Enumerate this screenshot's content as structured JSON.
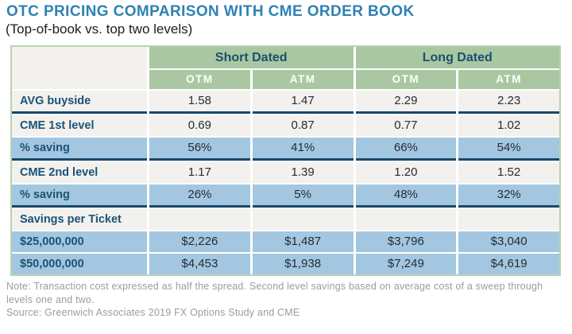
{
  "title": "OTC PRICING COMPARISON WITH CME ORDER BOOK",
  "subtitle": "(Top-of-book vs. top two levels)",
  "chart_data": {
    "type": "table",
    "group_headers": [
      "Short Dated",
      "Long Dated"
    ],
    "columns": [
      "OTM",
      "ATM",
      "OTM",
      "ATM"
    ],
    "rows": [
      {
        "label": "AVG buyside",
        "values": [
          "1.58",
          "1.47",
          "2.29",
          "2.23"
        ]
      },
      {
        "label": "CME 1st level",
        "values": [
          "0.69",
          "0.87",
          "0.77",
          "1.02"
        ]
      },
      {
        "label": "% saving",
        "values": [
          "56%",
          "41%",
          "66%",
          "54%"
        ]
      },
      {
        "label": "CME 2nd level",
        "values": [
          "1.17",
          "1.39",
          "1.20",
          "1.52"
        ]
      },
      {
        "label": "% saving",
        "values": [
          "26%",
          "5%",
          "48%",
          "32%"
        ]
      },
      {
        "label": "Savings per Ticket",
        "values": [
          "",
          "",
          "",
          ""
        ]
      },
      {
        "label": "$25,000,000",
        "values": [
          "$2,226",
          "$1,487",
          "$3,796",
          "$3,040"
        ]
      },
      {
        "label": "$50,000,000",
        "values": [
          "$4,453",
          "$1,938",
          "$7,249",
          "$4,619"
        ]
      }
    ]
  },
  "footer": {
    "note": "Note: Transaction cost expressed as half the spread. Second level savings based on average cost of a sweep through levels one and two.",
    "source": "Source: Greenwich Associates 2019 FX Options Study and CME"
  },
  "colors": {
    "title_blue": "#2f81b5",
    "header_green": "#a9c8a1",
    "row_blue": "#a3c7e1",
    "row_light": "#f2f1ee",
    "divider_navy": "#17486a",
    "outer_border_green": "#b8d2ae",
    "header_text_navy": "#1c4e70",
    "note_gray": "#9c9c9c"
  }
}
